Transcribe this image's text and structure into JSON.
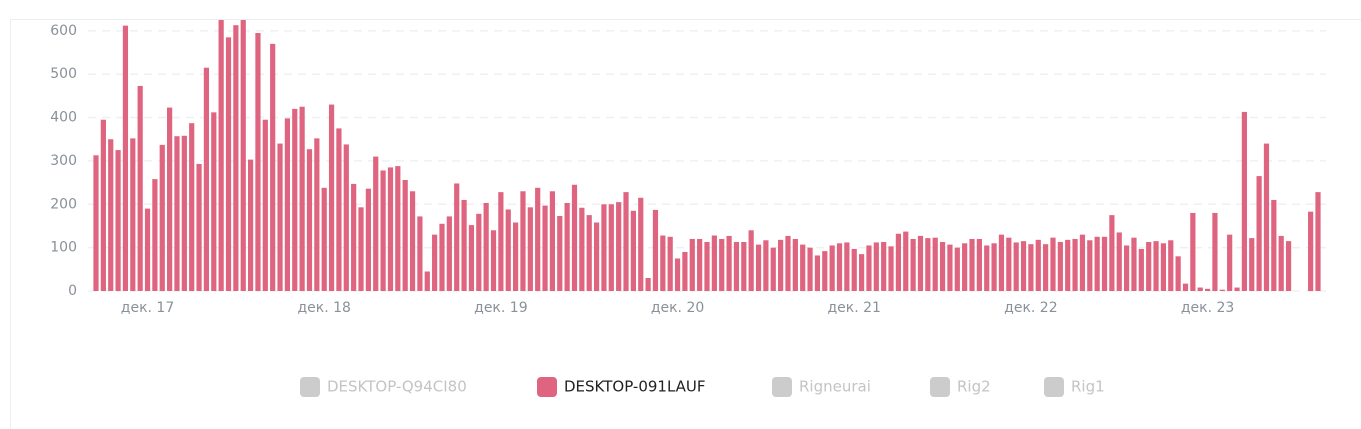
{
  "chart_data": {
    "type": "bar",
    "categories": [
      null,
      null,
      null,
      null,
      null,
      null,
      null,
      "дек. 17",
      null,
      null,
      null,
      null,
      null,
      null,
      null,
      null,
      null,
      null,
      null,
      null,
      null,
      null,
      null,
      null,
      null,
      null,
      null,
      null,
      null,
      null,
      null,
      "дек. 18",
      null,
      null,
      null,
      null,
      null,
      null,
      null,
      null,
      null,
      null,
      null,
      null,
      null,
      null,
      null,
      null,
      null,
      null,
      null,
      null,
      null,
      null,
      null,
      "дек. 19",
      null,
      null,
      null,
      null,
      null,
      null,
      null,
      null,
      null,
      null,
      null,
      null,
      null,
      null,
      null,
      null,
      null,
      null,
      null,
      null,
      null,
      null,
      null,
      "дек. 20",
      null,
      null,
      null,
      null,
      null,
      null,
      null,
      null,
      null,
      null,
      null,
      null,
      null,
      null,
      null,
      null,
      null,
      null,
      null,
      null,
      null,
      null,
      null,
      "дек. 21",
      null,
      null,
      null,
      null,
      null,
      null,
      null,
      null,
      null,
      null,
      null,
      null,
      null,
      null,
      null,
      null,
      null,
      null,
      null,
      null,
      null,
      null,
      null,
      "дек. 22",
      null,
      null,
      null,
      null,
      null,
      null,
      null,
      null,
      null,
      null,
      null,
      null,
      null,
      null,
      null,
      null,
      null,
      null,
      null,
      null,
      null,
      null,
      null,
      "дек. 23",
      null,
      null,
      null,
      null,
      null,
      null,
      null,
      null,
      null,
      null,
      null,
      null,
      null,
      null,
      null
    ],
    "series": [
      {
        "name": "DESKTOP-Q94CI80",
        "color": "#cccccc",
        "hidden": true
      },
      {
        "name": "DESKTOP-091LAUF",
        "color": "#df6480",
        "hidden": false,
        "values": [
          313,
          395,
          350,
          325,
          612,
          352,
          473,
          190,
          258,
          337,
          423,
          357,
          358,
          387,
          293,
          515,
          412,
          635,
          585,
          613,
          625,
          303,
          595,
          395,
          570,
          340,
          398,
          420,
          425,
          327,
          352,
          238,
          430,
          375,
          338,
          247,
          193,
          236,
          310,
          278,
          285,
          288,
          256,
          230,
          172,
          45,
          130,
          155,
          172,
          248,
          210,
          152,
          178,
          203,
          140,
          228,
          188,
          158,
          230,
          193,
          238,
          197,
          230,
          173,
          203,
          245,
          192,
          175,
          158,
          200,
          200,
          205,
          228,
          185,
          215,
          30,
          187,
          128,
          125,
          75,
          90,
          120,
          120,
          113,
          128,
          120,
          127,
          113,
          113,
          140,
          107,
          117,
          100,
          118,
          127,
          120,
          107,
          100,
          82,
          92,
          105,
          110,
          112,
          97,
          85,
          105,
          112,
          113,
          103,
          132,
          137,
          120,
          127,
          122,
          123,
          113,
          107,
          100,
          110,
          120,
          120,
          105,
          110,
          130,
          123,
          112,
          115,
          108,
          118,
          108,
          123,
          113,
          118,
          120,
          130,
          117,
          125,
          125,
          175,
          135,
          105,
          123,
          97,
          113,
          115,
          110,
          117,
          80,
          17,
          180,
          8,
          5,
          180,
          3,
          130,
          8,
          413,
          122,
          265,
          340,
          210,
          127,
          115,
          null,
          null,
          183,
          228
        ]
      },
      {
        "name": "Rigneurai",
        "color": "#cccccc",
        "hidden": true
      },
      {
        "name": "Rig2",
        "color": "#cccccc",
        "hidden": true
      },
      {
        "name": "Rig1",
        "color": "#cccccc",
        "hidden": true
      }
    ],
    "ylim": [
      0,
      625
    ],
    "yticks": [
      0,
      100,
      200,
      300,
      400,
      500,
      600
    ],
    "grid": true
  }
}
